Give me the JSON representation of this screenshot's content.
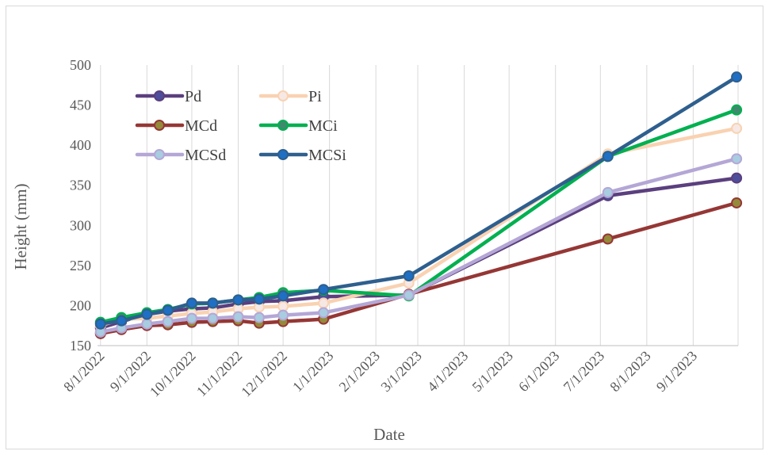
{
  "chart_data": {
    "type": "line",
    "title": "",
    "xlabel": "Date",
    "ylabel": "Height (mm)",
    "ylim": [
      150,
      500
    ],
    "yticks": [
      150,
      200,
      250,
      300,
      350,
      400,
      450,
      500
    ],
    "xlim": [
      "2022-07-30",
      "2023-10-01"
    ],
    "xtick_dates": [
      "2022-08-01",
      "2022-09-01",
      "2022-10-01",
      "2022-11-01",
      "2022-12-01",
      "2023-01-01",
      "2023-02-01",
      "2023-03-01",
      "2023-04-01",
      "2023-05-01",
      "2023-06-01",
      "2023-07-01",
      "2023-08-01",
      "2023-09-01"
    ],
    "xtick_labels": [
      "8/1/2022",
      "9/1/2022",
      "10/1/2022",
      "11/1/2022",
      "12/1/2022",
      "1/1/2023",
      "2/1/2023",
      "3/1/2023",
      "4/1/2023",
      "5/1/2023",
      "6/1/2023",
      "7/1/2023",
      "8/1/2023",
      "9/1/2023"
    ],
    "grid": "vertical",
    "legend_position": "top-left",
    "x": [
      "2022-08-01",
      "2022-08-15",
      "2022-09-01",
      "2022-09-15",
      "2022-10-01",
      "2022-10-15",
      "2022-11-01",
      "2022-11-15",
      "2022-12-01",
      "2022-12-28",
      "2023-02-23",
      "2023-07-06",
      "2023-09-30"
    ],
    "series": [
      {
        "name": "Pd",
        "color": "#5b3f7e",
        "marker": "#4e4e9c",
        "values": [
          172,
          180,
          189,
          193,
          196,
          197,
          202,
          205,
          206,
          211,
          213,
          337,
          359
        ]
      },
      {
        "name": "Pi",
        "color": "#f9d2b2",
        "marker": "#f6e8e4",
        "values": [
          175,
          183,
          184,
          187,
          190,
          192,
          196,
          198,
          199,
          203,
          228,
          389,
          421
        ]
      },
      {
        "name": "MCd",
        "color": "#953735",
        "marker": "#948a3a",
        "values": [
          165,
          170,
          175,
          176,
          179,
          180,
          181,
          178,
          180,
          183,
          214,
          283,
          328
        ]
      },
      {
        "name": "MCi",
        "color": "#00b050",
        "marker": "#3d8a6c",
        "values": [
          179,
          185,
          191,
          195,
          202,
          203,
          207,
          210,
          216,
          219,
          212,
          386,
          444
        ]
      },
      {
        "name": "MCSd",
        "color": "#b4a7d6",
        "marker": "#a8cce0",
        "values": [
          167,
          172,
          177,
          180,
          184,
          184,
          186,
          185,
          188,
          191,
          213,
          341,
          383
        ]
      },
      {
        "name": "MCSi",
        "color": "#2e5f8e",
        "marker": "#1f6fc4",
        "values": [
          177,
          181,
          189,
          194,
          203,
          203,
          207,
          208,
          212,
          220,
          237,
          386,
          485
        ]
      }
    ]
  }
}
